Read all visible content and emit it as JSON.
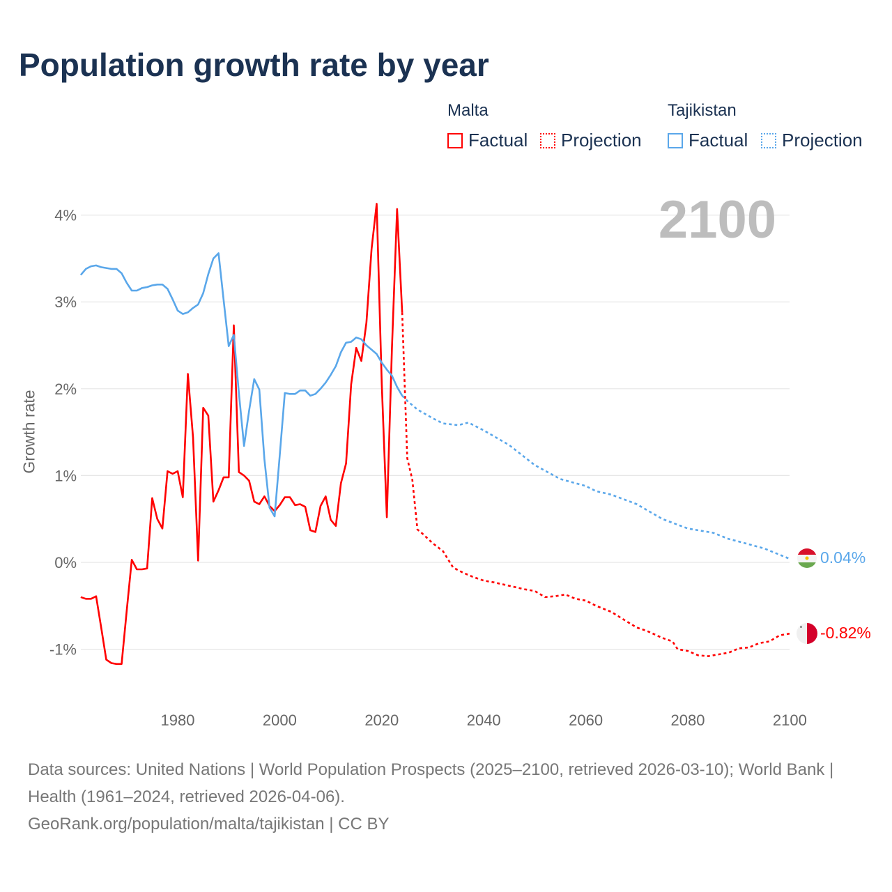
{
  "title": "Population growth rate by year",
  "legend": {
    "groups": [
      {
        "country": "Malta",
        "factual": "Factual",
        "projection": "Projection",
        "color": "#ff0000"
      },
      {
        "country": "Tajikistan",
        "factual": "Factual",
        "projection": "Projection",
        "color": "#5aa7ea"
      }
    ]
  },
  "current_year_label": "2100",
  "end_labels": {
    "tajikistan": "0.04%",
    "malta": "-0.82%"
  },
  "footer": {
    "sources": "Data sources: United Nations | World Population Prospects (2025–2100, retrieved 2026-03-10); World Bank | Health (1961–2024, retrieved 2026-04-06).",
    "credit": "GeoRank.org/population/malta/tajikistan | CC BY"
  },
  "chart_data": {
    "type": "line",
    "title": "Population growth rate by year",
    "xlabel": "",
    "ylabel": "Growth rate",
    "xlim": [
      1961,
      2100
    ],
    "ylim": [
      -1.5,
      4.2
    ],
    "x_ticks": [
      "1980",
      "2000",
      "2020",
      "2040",
      "2060",
      "2080",
      "2100"
    ],
    "x_tick_values": [
      1980,
      2000,
      2020,
      2040,
      2060,
      2080,
      2100
    ],
    "y_ticks": [
      "-1%",
      "0%",
      "1%",
      "2%",
      "3%",
      "4%"
    ],
    "y_tick_values": [
      -1,
      0,
      1,
      2,
      3,
      4
    ],
    "grid": true,
    "series": [
      {
        "name": "Malta Factual",
        "color": "#ff0000",
        "style": "solid",
        "x": [
          1961,
          1962,
          1963,
          1964,
          1965,
          1966,
          1967,
          1968,
          1969,
          1970,
          1971,
          1972,
          1973,
          1974,
          1975,
          1976,
          1977,
          1978,
          1979,
          1980,
          1981,
          1982,
          1983,
          1984,
          1985,
          1986,
          1987,
          1988,
          1989,
          1990,
          1991,
          1992,
          1993,
          1994,
          1995,
          1996,
          1997,
          1998,
          1999,
          2000,
          2001,
          2002,
          2003,
          2004,
          2005,
          2006,
          2007,
          2008,
          2009,
          2010,
          2011,
          2012,
          2013,
          2014,
          2015,
          2016,
          2017,
          2018,
          2019,
          2020,
          2021,
          2022,
          2023,
          2024
        ],
        "y": [
          -0.4,
          -0.42,
          -0.42,
          -0.39,
          -0.75,
          -1.12,
          -1.16,
          -1.17,
          -1.17,
          -0.56,
          0.03,
          -0.08,
          -0.08,
          -0.07,
          0.74,
          0.5,
          0.39,
          1.05,
          1.02,
          1.05,
          0.75,
          2.17,
          1.44,
          0.02,
          1.78,
          1.69,
          0.7,
          0.83,
          0.98,
          0.98,
          2.73,
          1.04,
          1.0,
          0.94,
          0.7,
          0.67,
          0.76,
          0.65,
          0.59,
          0.66,
          0.75,
          0.75,
          0.66,
          0.67,
          0.64,
          0.37,
          0.35,
          0.65,
          0.76,
          0.49,
          0.42,
          0.91,
          1.14,
          2.05,
          2.47,
          2.32,
          2.76,
          3.61,
          4.13,
          2.06,
          0.52,
          2.46,
          4.07,
          2.88
        ]
      },
      {
        "name": "Malta Projection",
        "color": "#ff0000",
        "style": "dotted",
        "x": [
          2024,
          2025,
          2026,
          2027,
          2028,
          2030,
          2032,
          2034,
          2036,
          2038,
          2040,
          2042,
          2045,
          2048,
          2050,
          2052,
          2054,
          2056,
          2058,
          2060,
          2062,
          2065,
          2068,
          2070,
          2072,
          2075,
          2077,
          2078,
          2080,
          2082,
          2084,
          2086,
          2088,
          2090,
          2092,
          2094,
          2096,
          2098,
          2100
        ],
        "y": [
          2.88,
          1.2,
          0.95,
          0.38,
          0.33,
          0.22,
          0.13,
          -0.06,
          -0.12,
          -0.17,
          -0.21,
          -0.23,
          -0.27,
          -0.31,
          -0.33,
          -0.4,
          -0.39,
          -0.37,
          -0.42,
          -0.44,
          -0.5,
          -0.57,
          -0.68,
          -0.75,
          -0.79,
          -0.87,
          -0.91,
          -1.0,
          -1.02,
          -1.07,
          -1.08,
          -1.06,
          -1.04,
          -0.99,
          -0.98,
          -0.93,
          -0.91,
          -0.84,
          -0.82
        ]
      },
      {
        "name": "Tajikistan Factual",
        "color": "#5aa7ea",
        "style": "solid",
        "x": [
          1961,
          1962,
          1963,
          1964,
          1965,
          1966,
          1967,
          1968,
          1969,
          1970,
          1971,
          1972,
          1973,
          1974,
          1975,
          1976,
          1977,
          1978,
          1979,
          1980,
          1981,
          1982,
          1983,
          1984,
          1985,
          1986,
          1987,
          1988,
          1989,
          1990,
          1991,
          1992,
          1993,
          1994,
          1995,
          1996,
          1997,
          1998,
          1999,
          2000,
          2001,
          2002,
          2003,
          2004,
          2005,
          2006,
          2007,
          2008,
          2009,
          2010,
          2011,
          2012,
          2013,
          2014,
          2015,
          2016,
          2017,
          2018,
          2019,
          2020,
          2021,
          2022,
          2023,
          2024
        ],
        "y": [
          3.31,
          3.38,
          3.41,
          3.42,
          3.4,
          3.39,
          3.38,
          3.38,
          3.33,
          3.22,
          3.13,
          3.13,
          3.16,
          3.17,
          3.19,
          3.2,
          3.2,
          3.15,
          3.03,
          2.9,
          2.86,
          2.88,
          2.93,
          2.97,
          3.1,
          3.32,
          3.5,
          3.56,
          3.02,
          2.49,
          2.62,
          1.95,
          1.34,
          1.75,
          2.11,
          1.99,
          1.19,
          0.63,
          0.53,
          1.23,
          1.95,
          1.94,
          1.94,
          1.98,
          1.98,
          1.92,
          1.94,
          2.0,
          2.07,
          2.16,
          2.26,
          2.42,
          2.53,
          2.54,
          2.59,
          2.57,
          2.5,
          2.45,
          2.4,
          2.3,
          2.22,
          2.15,
          2.02,
          1.92
        ]
      },
      {
        "name": "Tajikistan Projection",
        "color": "#5aa7ea",
        "style": "dotted",
        "x": [
          2024,
          2025,
          2027,
          2030,
          2032,
          2035,
          2037,
          2040,
          2045,
          2050,
          2055,
          2060,
          2062,
          2065,
          2070,
          2075,
          2080,
          2085,
          2088,
          2090,
          2095,
          2100
        ],
        "y": [
          1.92,
          1.86,
          1.76,
          1.66,
          1.6,
          1.58,
          1.61,
          1.52,
          1.35,
          1.12,
          0.96,
          0.88,
          0.82,
          0.78,
          0.67,
          0.5,
          0.39,
          0.34,
          0.27,
          0.24,
          0.16,
          0.04
        ]
      }
    ]
  }
}
